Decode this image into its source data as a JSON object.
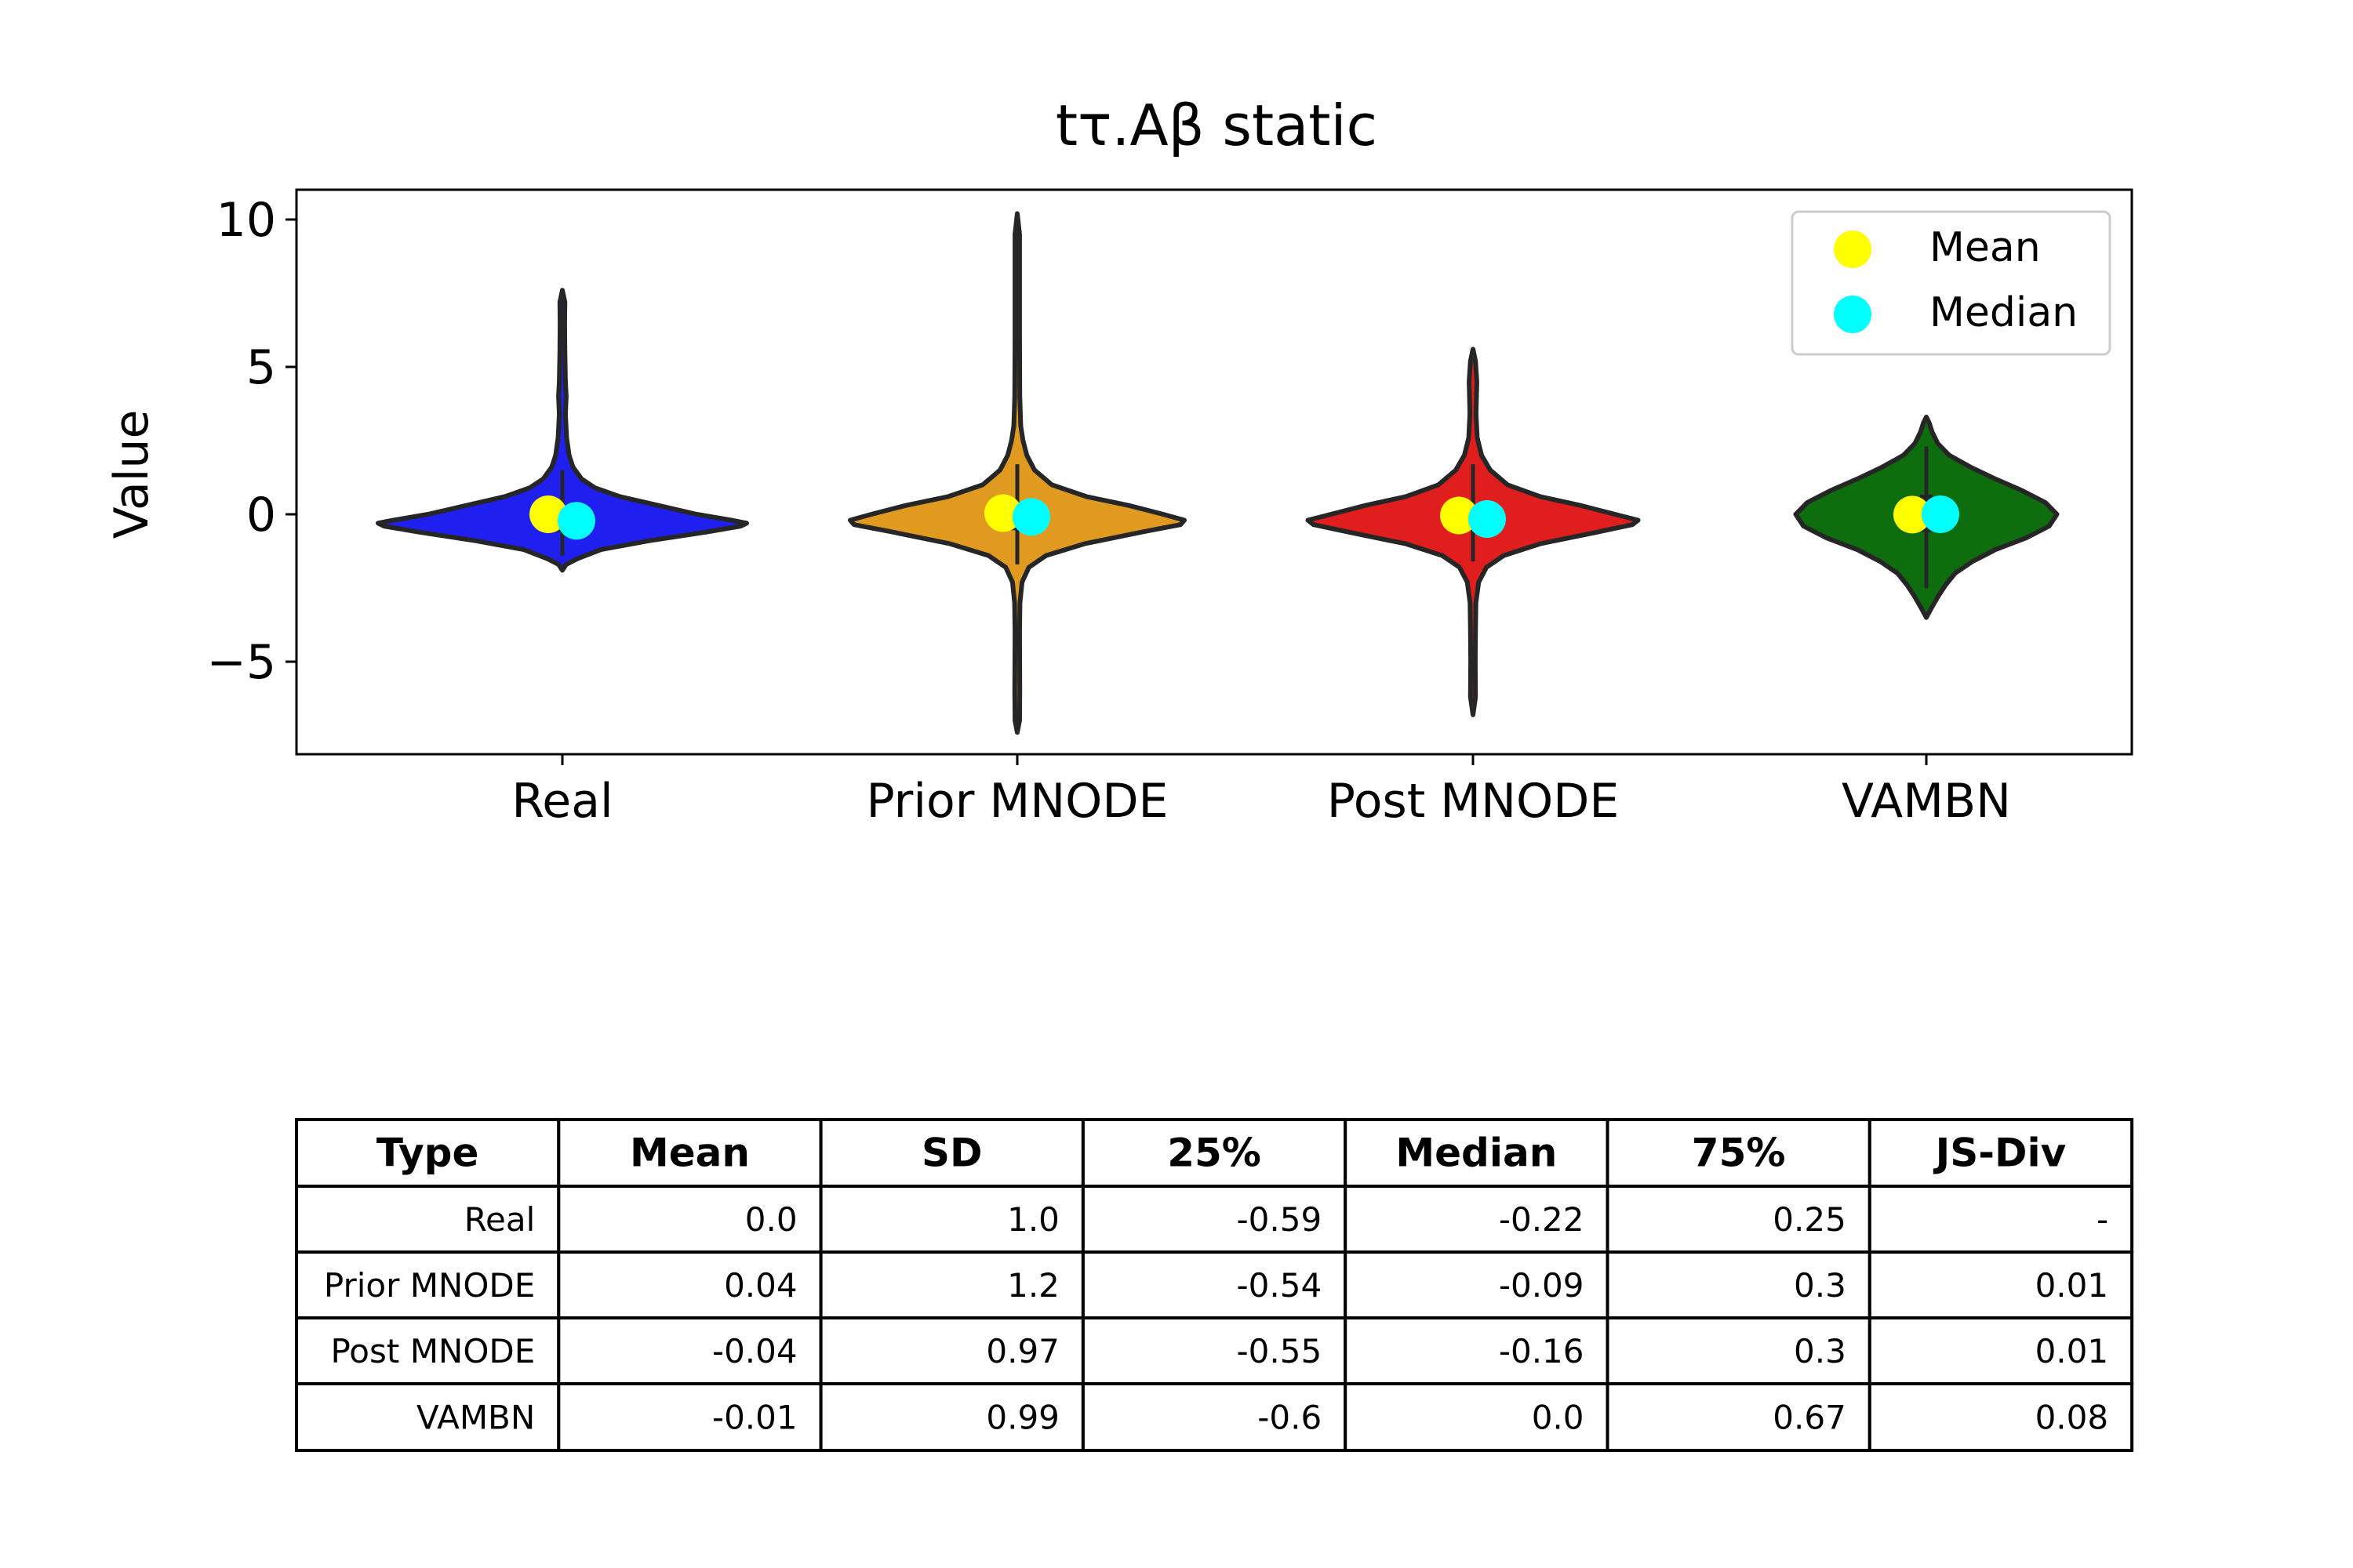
{
  "chart_data": {
    "type": "violin",
    "title": "tτ.Aβ static",
    "ylabel": "Value",
    "xlabel": "",
    "ylim": [
      -8.2,
      11.0
    ],
    "yticks": [
      {
        "value": 10,
        "label": "10"
      },
      {
        "value": 5,
        "label": "5"
      },
      {
        "value": 0,
        "label": "0"
      },
      {
        "value": -5,
        "label": "−5"
      }
    ],
    "categories": [
      "Real",
      "Prior MNODE",
      "Post MNODE",
      "VAMBN"
    ],
    "colors": [
      "#1f1fef",
      "#e09a20",
      "#e01e1e",
      "#0e6e0e"
    ],
    "violins": [
      {
        "name": "Real",
        "min": -1.9,
        "max": 7.6,
        "q1": -0.59,
        "median": -0.22,
        "q3": 0.25,
        "whisker_low": -1.4,
        "whisker_high": 1.5,
        "mean": 0.0,
        "profile": [
          [
            -1.9,
            0.0
          ],
          [
            -1.7,
            0.2
          ],
          [
            -1.5,
            0.8
          ],
          [
            -1.2,
            2.0
          ],
          [
            -0.9,
            4.5
          ],
          [
            -0.6,
            7.5
          ],
          [
            -0.4,
            9.3
          ],
          [
            -0.3,
            9.6
          ],
          [
            -0.2,
            8.8
          ],
          [
            0,
            7.0
          ],
          [
            0.3,
            5.0
          ],
          [
            0.6,
            3.0
          ],
          [
            0.9,
            1.7
          ],
          [
            1.2,
            1.0
          ],
          [
            1.6,
            0.55
          ],
          [
            2.0,
            0.35
          ],
          [
            2.6,
            0.22
          ],
          [
            3.4,
            0.16
          ],
          [
            4.0,
            0.2
          ],
          [
            4.5,
            0.16
          ],
          [
            5.5,
            0.13
          ],
          [
            6.5,
            0.12
          ],
          [
            7.2,
            0.13
          ],
          [
            7.6,
            0.0
          ]
        ]
      },
      {
        "name": "Prior MNODE",
        "min": -7.4,
        "max": 10.2,
        "q1": -0.54,
        "median": -0.09,
        "q3": 0.3,
        "whisker_low": -1.7,
        "whisker_high": 1.7,
        "mean": 0.04,
        "profile": [
          [
            -7.4,
            0.0
          ],
          [
            -7.0,
            0.12
          ],
          [
            -6.0,
            0.13
          ],
          [
            -4.0,
            0.12
          ],
          [
            -3.0,
            0.14
          ],
          [
            -2.3,
            0.25
          ],
          [
            -1.8,
            0.6
          ],
          [
            -1.4,
            1.5
          ],
          [
            -1.0,
            3.5
          ],
          [
            -0.6,
            6.5
          ],
          [
            -0.35,
            8.5
          ],
          [
            -0.2,
            8.7
          ],
          [
            0,
            7.6
          ],
          [
            0.3,
            5.8
          ],
          [
            0.6,
            3.6
          ],
          [
            1.0,
            1.8
          ],
          [
            1.5,
            0.9
          ],
          [
            2.0,
            0.5
          ],
          [
            2.5,
            0.3
          ],
          [
            3.0,
            0.18
          ],
          [
            4.0,
            0.13
          ],
          [
            6.0,
            0.12
          ],
          [
            8.0,
            0.12
          ],
          [
            9.5,
            0.12
          ],
          [
            10.2,
            0.0
          ]
        ]
      },
      {
        "name": "Post MNODE",
        "min": -6.8,
        "max": 5.6,
        "q1": -0.55,
        "median": -0.16,
        "q3": 0.3,
        "whisker_low": -1.6,
        "whisker_high": 1.7,
        "mean": -0.04,
        "profile": [
          [
            -6.8,
            0.0
          ],
          [
            -6.2,
            0.13
          ],
          [
            -5.0,
            0.12
          ],
          [
            -4.0,
            0.13
          ],
          [
            -3.0,
            0.15
          ],
          [
            -2.3,
            0.3
          ],
          [
            -1.8,
            0.7
          ],
          [
            -1.4,
            1.6
          ],
          [
            -1.0,
            3.5
          ],
          [
            -0.6,
            6.5
          ],
          [
            -0.35,
            8.3
          ],
          [
            -0.2,
            8.6
          ],
          [
            0,
            7.4
          ],
          [
            0.3,
            5.6
          ],
          [
            0.6,
            3.5
          ],
          [
            1.0,
            1.8
          ],
          [
            1.5,
            0.9
          ],
          [
            2.0,
            0.45
          ],
          [
            2.6,
            0.22
          ],
          [
            3.4,
            0.16
          ],
          [
            4.5,
            0.2
          ],
          [
            5.2,
            0.13
          ],
          [
            5.6,
            0.0
          ]
        ]
      },
      {
        "name": "VAMBN",
        "min": -3.5,
        "max": 3.3,
        "q1": -0.6,
        "median": 0.0,
        "q3": 0.67,
        "whisker_low": -2.5,
        "whisker_high": 2.3,
        "mean": -0.01,
        "profile": [
          [
            -3.5,
            0.0
          ],
          [
            -3.2,
            0.25
          ],
          [
            -2.8,
            0.6
          ],
          [
            -2.4,
            1.0
          ],
          [
            -2.0,
            1.5
          ],
          [
            -1.6,
            2.4
          ],
          [
            -1.2,
            3.6
          ],
          [
            -0.8,
            5.2
          ],
          [
            -0.4,
            6.4
          ],
          [
            0,
            6.8
          ],
          [
            0.4,
            6.2
          ],
          [
            0.8,
            5.0
          ],
          [
            1.2,
            3.6
          ],
          [
            1.6,
            2.3
          ],
          [
            2.0,
            1.2
          ],
          [
            2.4,
            0.6
          ],
          [
            2.8,
            0.3
          ],
          [
            3.1,
            0.15
          ],
          [
            3.3,
            0.0
          ]
        ]
      }
    ],
    "markers": {
      "mean": {
        "label": "Mean",
        "color": "#ffff00"
      },
      "median": {
        "label": "Median",
        "color": "#00ffff"
      }
    },
    "legend_position": "top-right",
    "grid": false
  },
  "table": {
    "columns": [
      "Type",
      "Mean",
      "SD",
      "25%",
      "Median",
      "75%",
      "JS-Div"
    ],
    "rows": [
      [
        "Real",
        "0.0",
        "1.0",
        "-0.59",
        "-0.22",
        "0.25",
        "-"
      ],
      [
        "Prior MNODE",
        "0.04",
        "1.2",
        "-0.54",
        "-0.09",
        "0.3",
        "0.01"
      ],
      [
        "Post MNODE",
        "-0.04",
        "0.97",
        "-0.55",
        "-0.16",
        "0.3",
        "0.01"
      ],
      [
        "VAMBN",
        "-0.01",
        "0.99",
        "-0.6",
        "0.0",
        "0.67",
        "0.08"
      ]
    ]
  }
}
